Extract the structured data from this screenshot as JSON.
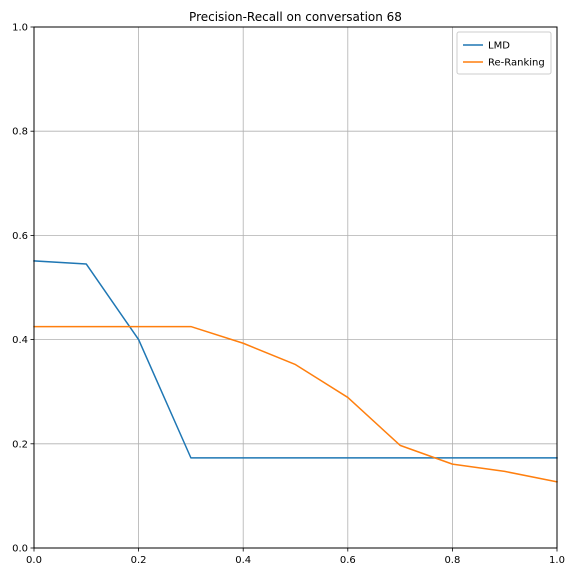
{
  "chart_data": {
    "type": "line",
    "title": "Precision-Recall on conversation 68",
    "xlabel": "",
    "ylabel": "",
    "xlim": [
      0.0,
      1.0
    ],
    "ylim": [
      0.0,
      1.0
    ],
    "grid": true,
    "legend_position": "top-right",
    "x": [
      0.0,
      0.1,
      0.2,
      0.3,
      0.4,
      0.5,
      0.6,
      0.7,
      0.8,
      0.9,
      1.0
    ],
    "xticks": [
      "0.0",
      "0.2",
      "0.4",
      "0.6",
      "0.8",
      "1.0"
    ],
    "yticks": [
      "0.0",
      "0.2",
      "0.4",
      "0.6",
      "0.8",
      "1.0"
    ],
    "series": [
      {
        "name": "LMD",
        "color": "#1f77b4",
        "values": [
          0.551,
          0.545,
          0.4,
          0.173,
          0.173,
          0.173,
          0.173,
          0.173,
          0.173,
          0.173,
          0.173
        ]
      },
      {
        "name": "Re-Ranking",
        "color": "#ff7f0e",
        "values": [
          0.425,
          0.425,
          0.425,
          0.425,
          0.393,
          0.352,
          0.289,
          0.197,
          0.161,
          0.147,
          0.127
        ]
      }
    ]
  }
}
